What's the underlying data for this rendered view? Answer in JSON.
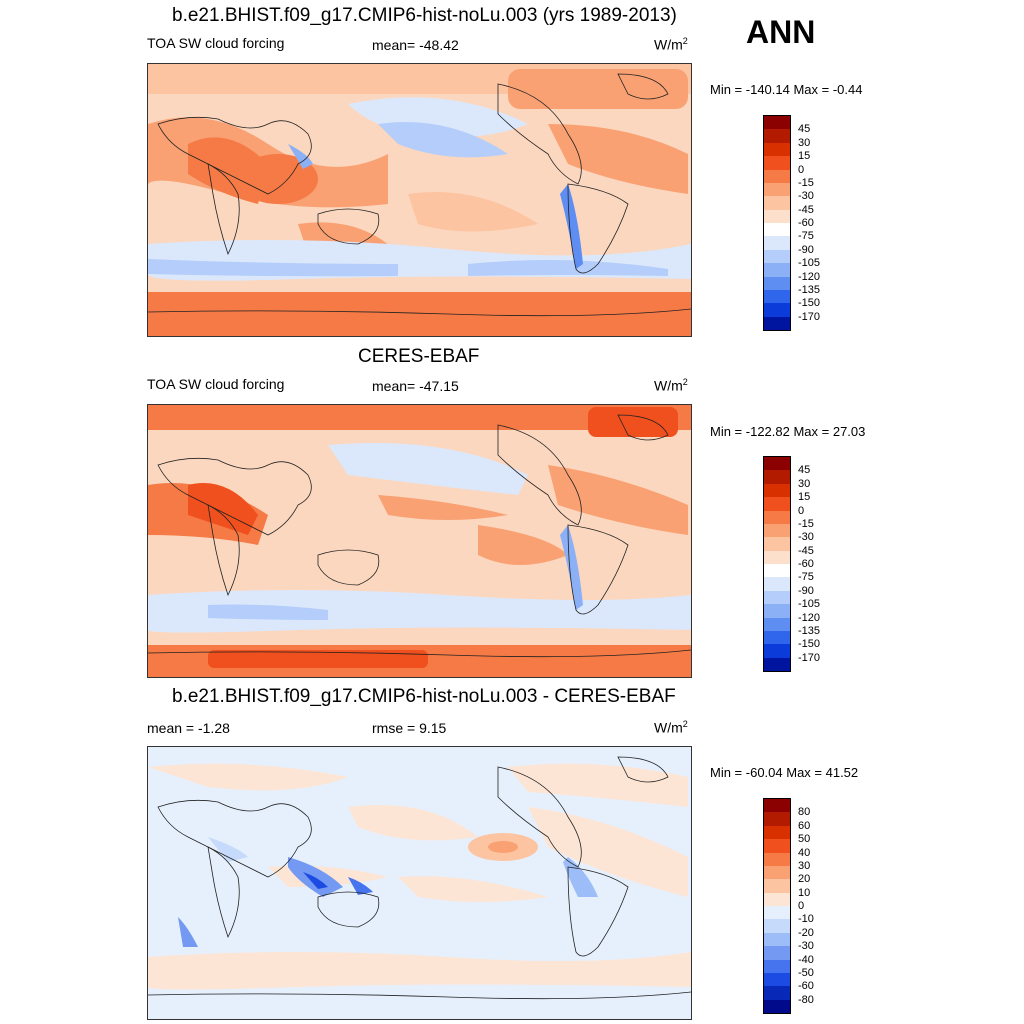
{
  "season": "ANN",
  "panels": [
    {
      "title": "b.e21.BHIST.f09_g17.CMIP6-hist-noLu.003 (yrs 1989-2013)",
      "left_label": "TOA SW cloud forcing",
      "center_label": "mean= -48.42",
      "units": "W/m",
      "units_sup": "2",
      "minmax": "Min = -140.14 Max =  -0.44",
      "colorbar": {
        "labels": [
          "45",
          "30",
          "15",
          "0",
          "-15",
          "-30",
          "-45",
          "-60",
          "-75",
          "-90",
          "-105",
          "-120",
          "-135",
          "-150",
          "-170"
        ],
        "colors": [
          "#8b0000",
          "#b31b00",
          "#d93000",
          "#f0501e",
          "#f57a45",
          "#f9a173",
          "#fcc4a0",
          "#fde0cc",
          "#ffffff",
          "#dbe8fb",
          "#b4cdfa",
          "#8cb0f6",
          "#5f8ef2",
          "#2f66ec",
          "#0b3bd8",
          "#00159f"
        ]
      }
    },
    {
      "title": "CERES-EBAF",
      "left_label": "TOA SW cloud forcing",
      "center_label": "mean= -47.15",
      "units": "W/m",
      "units_sup": "2",
      "minmax": "Min = -122.82 Max =  27.03",
      "colorbar": {
        "labels": [
          "45",
          "30",
          "15",
          "0",
          "-15",
          "-30",
          "-45",
          "-60",
          "-75",
          "-90",
          "-105",
          "-120",
          "-135",
          "-150",
          "-170"
        ],
        "colors": [
          "#8b0000",
          "#b31b00",
          "#d93000",
          "#f0501e",
          "#f57a45",
          "#f9a173",
          "#fcc4a0",
          "#fde0cc",
          "#ffffff",
          "#dbe8fb",
          "#b4cdfa",
          "#8cb0f6",
          "#5f8ef2",
          "#2f66ec",
          "#0b3bd8",
          "#00159f"
        ]
      }
    },
    {
      "title": "b.e21.BHIST.f09_g17.CMIP6-hist-noLu.003 - CERES-EBAF",
      "left_label": "mean =  -1.28",
      "center_label": "rmse =   9.15",
      "units": "W/m",
      "units_sup": "2",
      "minmax": "Min = -60.04 Max =  41.52",
      "colorbar": {
        "labels": [
          "80",
          "60",
          "50",
          "40",
          "30",
          "20",
          "10",
          "0",
          "-10",
          "-20",
          "-30",
          "-40",
          "-50",
          "-60",
          "-80"
        ],
        "colors": [
          "#8b0000",
          "#b31b00",
          "#d93000",
          "#f0501e",
          "#f57a45",
          "#f9a173",
          "#fcc4a0",
          "#fde5d5",
          "#e6f0fd",
          "#c6dafb",
          "#9dbdf8",
          "#7499f3",
          "#4673ee",
          "#1c4be3",
          "#0828b8",
          "#000a8a"
        ]
      }
    }
  ]
}
